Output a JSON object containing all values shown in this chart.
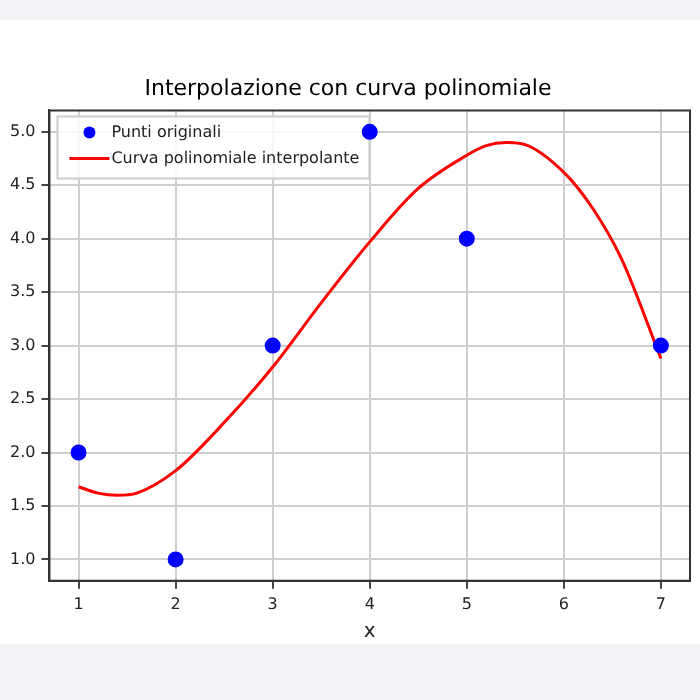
{
  "chart_data": {
    "type": "scatter",
    "title": "Interpolazione con curva polinomiale",
    "xlabel": "x",
    "xlim": [
      0.7,
      7.3
    ],
    "ylim": [
      0.8,
      5.2
    ],
    "xticks": [
      1,
      2,
      3,
      4,
      5,
      6,
      7
    ],
    "yticks": [
      {
        "value": 1,
        "label": "1.0"
      },
      {
        "value": 1.5,
        "label": "1.5"
      },
      {
        "value": 2,
        "label": "2.0"
      },
      {
        "value": 2.5,
        "label": "2.5"
      },
      {
        "value": 3,
        "label": "3.0"
      },
      {
        "value": 3.5,
        "label": "3.5"
      },
      {
        "value": 4,
        "label": "4.0"
      },
      {
        "value": 4.5,
        "label": "4.5"
      },
      {
        "value": 5,
        "label": "5.0"
      }
    ],
    "grid": true,
    "legend": "top left",
    "series": [
      {
        "name": "Punti originali",
        "type": "scatter",
        "marker": "circle",
        "color": "#0000ff",
        "x": [
          1,
          2,
          3,
          4,
          5,
          7
        ],
        "values": [
          2,
          1,
          3,
          5,
          4,
          3
        ]
      },
      {
        "name": "Curva polinomiale interpolante",
        "type": "line",
        "marker": "none",
        "line_style": "solid",
        "color": "#ff0000",
        "x": [
          1,
          1.2,
          1.4,
          1.6,
          2,
          2.5,
          3,
          3.5,
          4,
          4.5,
          5,
          5.2,
          5.4,
          5.6,
          6,
          6.3,
          6.6,
          7
        ],
        "values": [
          1.68,
          1.62,
          1.6,
          1.62,
          1.83,
          2.28,
          2.8,
          3.4,
          3.97,
          4.47,
          4.78,
          4.87,
          4.9,
          4.88,
          4.62,
          4.28,
          3.8,
          2.88
        ]
      }
    ]
  }
}
